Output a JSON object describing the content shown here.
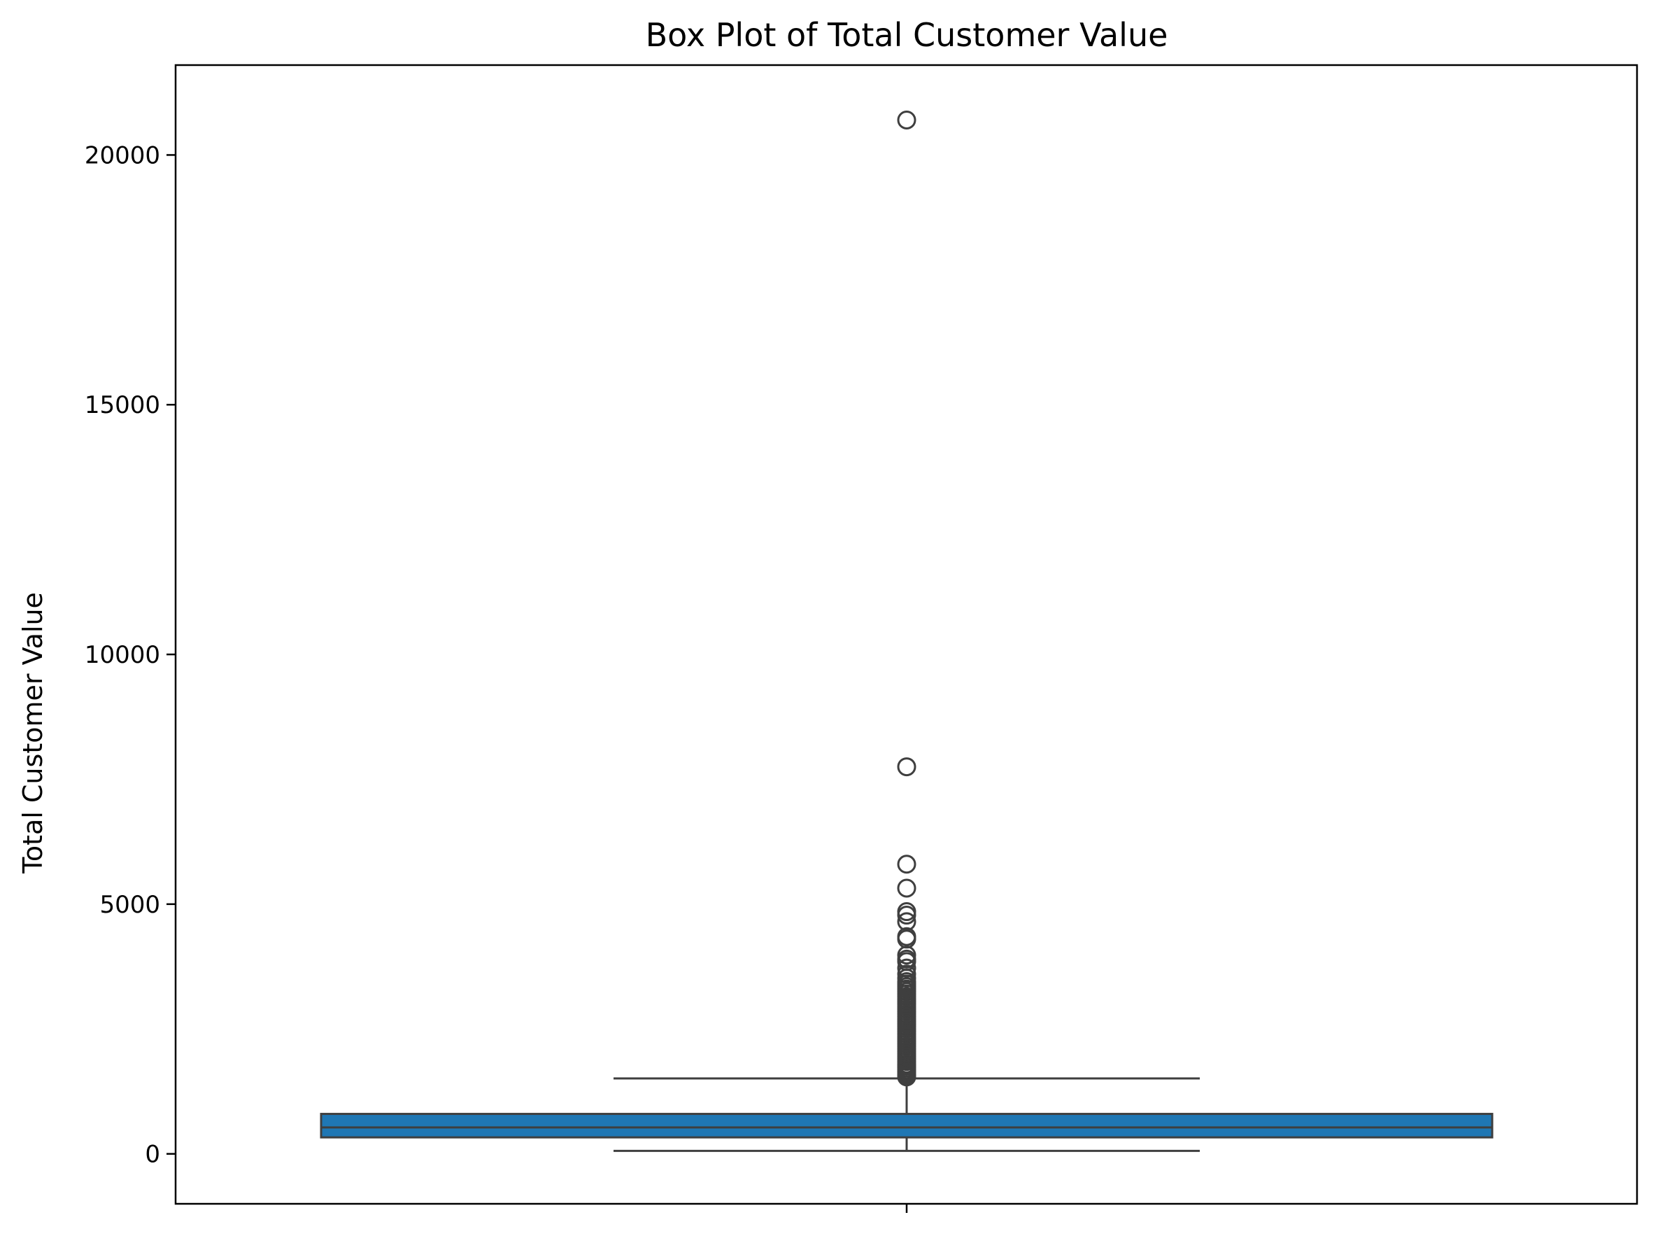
{
  "chart_data": {
    "type": "box",
    "title": "Box Plot of Total Customer Value",
    "xlabel": "",
    "ylabel": "Total Customer Value",
    "ylim": [
      -1000,
      21800
    ],
    "yticks": [
      0,
      5000,
      10000,
      15000,
      20000
    ],
    "grid": false,
    "box": {
      "whisker_low": 60,
      "q1": 330,
      "median": 530,
      "q3": 800,
      "whisker_high": 1510,
      "color": "#1f77b4",
      "edge_color": "#3f3f3f"
    },
    "outliers": [
      20700,
      7750,
      5800,
      5320,
      4850,
      4780,
      4650,
      4350,
      4300,
      3980,
      3900,
      3850,
      3720,
      3600,
      3520,
      3450,
      3400,
      3350,
      3300,
      3250,
      3200,
      3150,
      3100,
      3050,
      3000,
      2950,
      2900,
      2850,
      2800,
      2750,
      2700,
      2650,
      2600,
      2550,
      2500,
      2450,
      2400,
      2350,
      2300,
      2250,
      2200,
      2150,
      2100,
      2050,
      2000,
      1950,
      1900,
      1850,
      1800,
      1760,
      1720,
      1680,
      1640,
      1600,
      1570,
      1540
    ]
  }
}
